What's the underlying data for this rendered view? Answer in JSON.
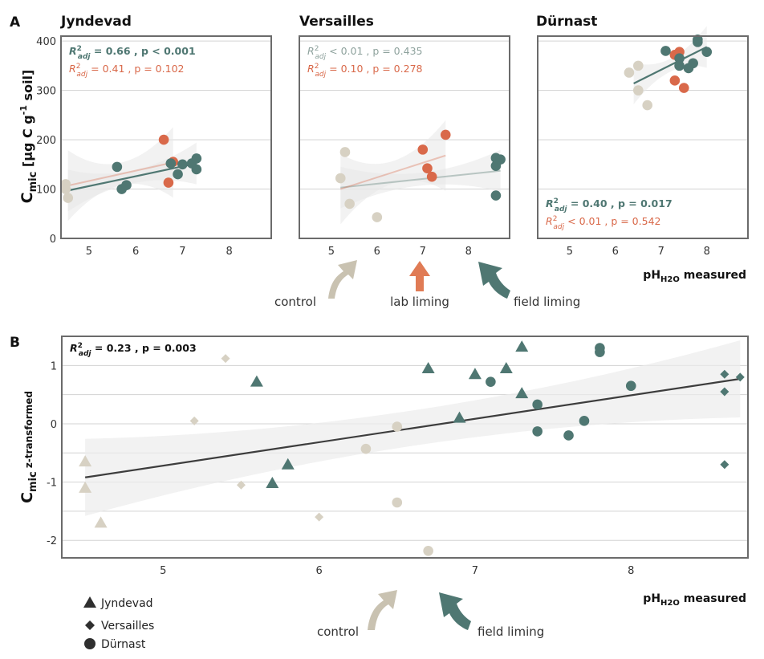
{
  "colors": {
    "field": "#4f7772",
    "lab": "#d9694a",
    "control": "#d7d1c3",
    "line": "#3d3d3d",
    "control_arrow": "#c9c2b1",
    "lab_arrow": "#e07b55",
    "field_arrow": "#4f7772"
  },
  "panel_a": {
    "label": "A",
    "ylabel_main": "C",
    "ylabel_sub": "mic",
    "ylabel_rest": " [µg C g",
    "ylabel_sup": "-1",
    "ylabel_end": " soil]",
    "xlabel_main": "pH",
    "xlabel_sub": "H2O",
    "xlabel_end": " measured",
    "arrows": {
      "control": "control",
      "lab": "lab liming",
      "field": "field liming"
    }
  },
  "panel_b": {
    "label": "B",
    "ylabel_main": "C",
    "ylabel_sub": "mic",
    "ylabel_rest": " z-transformed",
    "xlabel_main": "pH",
    "xlabel_sub": "H2O",
    "xlabel_end": " measured",
    "arrows": {
      "control": "control",
      "field": "field liming"
    },
    "legend": {
      "jyndevad": "Jyndevad",
      "versailles": "Versailles",
      "durnast": "Dürnast"
    }
  },
  "chart_data": [
    {
      "type": "scatter",
      "title": "Jyndevad",
      "xlabel": "pH H2O measured",
      "ylabel": "Cmic [µg C g-1 soil]",
      "xlim": [
        4.4,
        8.9
      ],
      "ylim": [
        0,
        410
      ],
      "xticks": [
        "5",
        "6",
        "7",
        "8"
      ],
      "yticks": [
        "0",
        "100",
        "200",
        "300",
        "400"
      ],
      "annotations": {
        "field": {
          "prefix": "R",
          "sup": "2",
          "sub": "adj",
          "text": " = 0.66 , p < 0.001"
        },
        "lab": {
          "prefix": "R",
          "sup": "2",
          "sub": "adj",
          "text": " = 0.41 , p = 0.102"
        }
      },
      "series": [
        {
          "name": "control",
          "x": [
            4.5,
            4.55,
            4.5
          ],
          "y": [
            110,
            82,
            100
          ]
        },
        {
          "name": "lab liming",
          "x": [
            6.6,
            6.8,
            6.7
          ],
          "y": [
            200,
            155,
            113
          ]
        },
        {
          "name": "field liming",
          "x": [
            5.6,
            5.7,
            5.8,
            6.75,
            6.9,
            7.0,
            7.2,
            7.3,
            7.3
          ],
          "y": [
            145,
            100,
            108,
            152,
            130,
            150,
            152,
            162,
            140
          ]
        }
      ],
      "fits": [
        {
          "name": "field liming",
          "x": [
            4.55,
            7.3
          ],
          "y": [
            97,
            152
          ]
        },
        {
          "name": "lab liming",
          "x": [
            4.55,
            6.8
          ],
          "y": [
            107,
            154
          ]
        }
      ]
    },
    {
      "type": "scatter",
      "title": "Versailles",
      "xlabel": "pH H2O measured",
      "ylabel": "Cmic [µg C g-1 soil]",
      "xlim": [
        4.3,
        8.9
      ],
      "ylim": [
        0,
        410
      ],
      "xticks": [
        "5",
        "6",
        "7",
        "8"
      ],
      "yticks": [
        "0",
        "100",
        "200",
        "300",
        "400"
      ],
      "annotations": {
        "field": {
          "prefix": "R",
          "sup": "2",
          "sub": "adj",
          "text": " < 0.01 , p = 0.435"
        },
        "lab": {
          "prefix": "R",
          "sup": "2",
          "sub": "adj",
          "text": " = 0.10 , p = 0.278"
        }
      },
      "series": [
        {
          "name": "control",
          "x": [
            5.2,
            5.3,
            5.4,
            6.0
          ],
          "y": [
            122,
            175,
            70,
            43
          ]
        },
        {
          "name": "lab liming",
          "x": [
            7.0,
            7.1,
            7.2,
            7.5
          ],
          "y": [
            180,
            142,
            125,
            210
          ]
        },
        {
          "name": "field liming",
          "x": [
            8.6,
            8.6,
            8.7,
            8.6
          ],
          "y": [
            163,
            147,
            160,
            87
          ]
        }
      ],
      "fits": [
        {
          "name": "field liming",
          "x": [
            5.2,
            8.7
          ],
          "y": [
            103,
            137
          ]
        },
        {
          "name": "lab liming",
          "x": [
            5.2,
            7.5
          ],
          "y": [
            100,
            168
          ]
        }
      ]
    },
    {
      "type": "scatter",
      "title": "Dürnast",
      "xlabel": "pH H2O measured",
      "ylabel": "Cmic [µg C g-1 soil]",
      "xlim": [
        4.3,
        8.9
      ],
      "ylim": [
        0,
        410
      ],
      "xticks": [
        "5",
        "6",
        "7",
        "8"
      ],
      "yticks": [
        "0",
        "100",
        "200",
        "300",
        "400"
      ],
      "annotations": {
        "field": {
          "prefix": "R",
          "sup": "2",
          "sub": "adj",
          "text": " = 0.40 , p = 0.017"
        },
        "lab": {
          "prefix": "R",
          "sup": "2",
          "sub": "adj",
          "text": " < 0.01 , p = 0.542"
        }
      },
      "series": [
        {
          "name": "control",
          "x": [
            6.3,
            6.5,
            6.5,
            6.7
          ],
          "y": [
            336,
            350,
            300,
            270
          ]
        },
        {
          "name": "lab liming",
          "x": [
            7.3,
            7.4,
            7.3,
            7.5
          ],
          "y": [
            372,
            378,
            320,
            305
          ]
        },
        {
          "name": "field liming",
          "x": [
            7.1,
            7.4,
            7.4,
            7.6,
            7.7,
            7.8,
            7.8,
            8.0
          ],
          "y": [
            380,
            365,
            350,
            345,
            355,
            403,
            398,
            378
          ]
        }
      ],
      "fits": [
        {
          "name": "field liming",
          "x": [
            6.4,
            8.0
          ],
          "y": [
            314,
            388
          ]
        }
      ]
    },
    {
      "type": "scatter",
      "title": "",
      "xlabel": "pH H2O measured",
      "ylabel": "Cmic z-transformed",
      "xlim": [
        4.35,
        8.75
      ],
      "ylim": [
        -2.3,
        1.5
      ],
      "xticks": [
        "5",
        "6",
        "7",
        "8"
      ],
      "yticks": [
        "-2",
        "-1",
        "0",
        "1"
      ],
      "annotation": {
        "prefix": "R",
        "sup": "2",
        "sub": "adj",
        "text": " = 0.23 , p = 0.003"
      },
      "legend": [
        "Jyndevad",
        "Versailles",
        "Dürnast"
      ],
      "series": [
        {
          "name": "Jyndevad control",
          "marker": "triangle",
          "group": "control",
          "x": [
            4.5,
            4.5,
            4.6
          ],
          "y": [
            -0.65,
            -1.1,
            -1.7
          ]
        },
        {
          "name": "Jyndevad field liming",
          "marker": "triangle",
          "group": "field",
          "x": [
            5.6,
            5.7,
            5.8,
            6.7,
            6.9,
            7.0,
            7.2,
            7.3,
            7.3
          ],
          "y": [
            0.72,
            -1.02,
            -0.7,
            0.95,
            0.1,
            0.85,
            0.95,
            1.32,
            0.52
          ]
        },
        {
          "name": "Versailles control",
          "marker": "diamond",
          "group": "control",
          "x": [
            5.2,
            5.4,
            5.5,
            6.0
          ],
          "y": [
            0.05,
            1.12,
            -1.05,
            -1.6
          ]
        },
        {
          "name": "Versailles field liming",
          "marker": "diamond",
          "group": "field",
          "x": [
            8.6,
            8.6,
            8.7,
            8.6
          ],
          "y": [
            0.85,
            0.55,
            0.8,
            -0.7
          ]
        },
        {
          "name": "Dürnast control",
          "marker": "circle",
          "group": "control",
          "x": [
            6.3,
            6.5,
            6.5,
            6.7
          ],
          "y": [
            -0.43,
            -0.05,
            -1.35,
            -2.18
          ]
        },
        {
          "name": "Dürnast field liming",
          "marker": "circle",
          "group": "field",
          "x": [
            7.1,
            7.4,
            7.4,
            7.6,
            7.7,
            7.8,
            7.8,
            8.0
          ],
          "y": [
            0.72,
            0.33,
            -0.13,
            -0.2,
            0.05,
            1.3,
            1.23,
            0.65
          ]
        }
      ],
      "fit": {
        "x": [
          4.5,
          8.7
        ],
        "y": [
          -0.92,
          0.77
        ]
      }
    }
  ]
}
